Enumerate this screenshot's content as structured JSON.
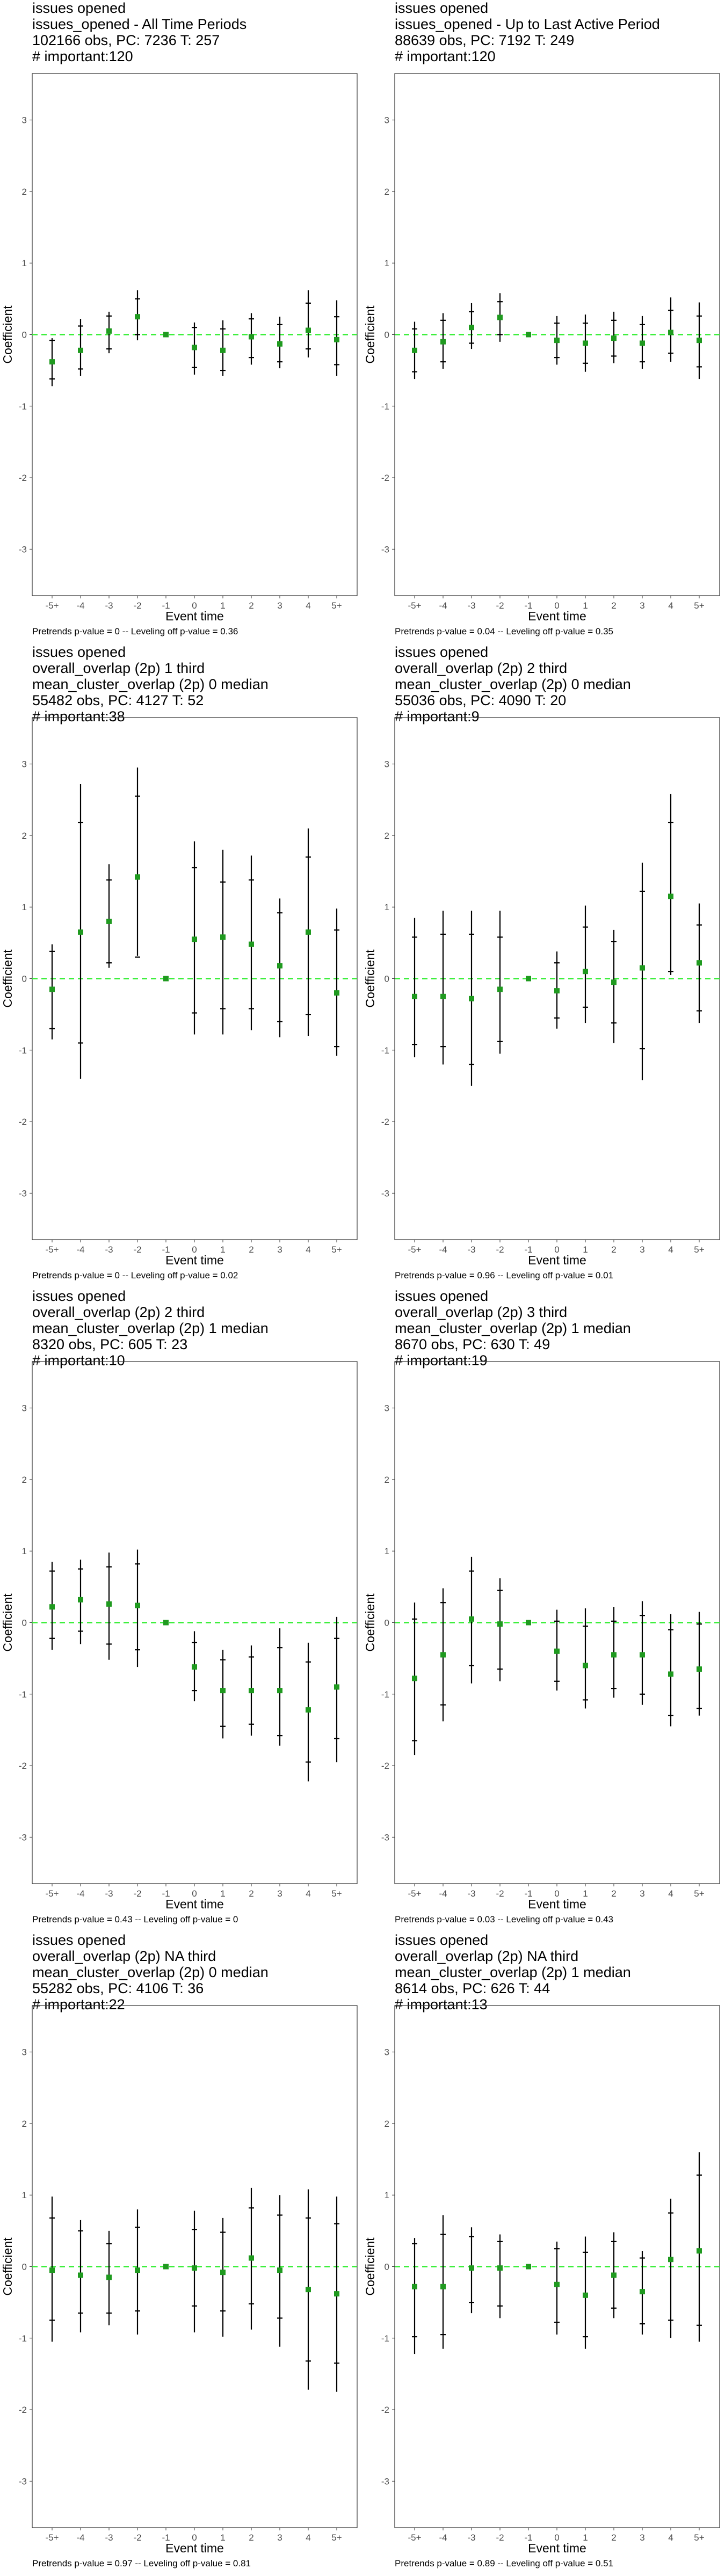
{
  "colors": {
    "point": "#1f9a1f",
    "zero_line": "#33ee33",
    "bar": "#000000",
    "frame": "#333333"
  },
  "chart_data": [
    {
      "type": "scatter",
      "title_lines": [
        "issues opened",
        "issues_opened - All Time Periods",
        "102166 obs, PC: 7236 T: 257",
        "# important:120"
      ],
      "footer": "Pretrends p-value = 0 -- Leveling off p-value = 0.36",
      "xlabel": "Event time",
      "ylabel": "Coefficient",
      "categories": [
        "-5+",
        "-4",
        "-3",
        "-2",
        "-1",
        "0",
        "1",
        "2",
        "3",
        "4",
        "5+"
      ],
      "yticks": [
        -3,
        -2,
        -1,
        0,
        1,
        2,
        3
      ],
      "ylim": [
        -3.65,
        3.65
      ],
      "estimates": [
        -0.38,
        -0.22,
        0.05,
        0.25,
        0.0,
        -0.18,
        -0.22,
        -0.03,
        -0.13,
        0.06,
        -0.07
      ],
      "ci95": [
        [
          -0.72,
          -0.05
        ],
        [
          -0.58,
          0.22
        ],
        [
          -0.26,
          0.32
        ],
        [
          -0.08,
          0.62
        ],
        [
          0,
          0
        ],
        [
          -0.56,
          0.17
        ],
        [
          -0.58,
          0.2
        ],
        [
          -0.42,
          0.3
        ],
        [
          -0.47,
          0.25
        ],
        [
          -0.32,
          0.62
        ],
        [
          -0.58,
          0.48
        ]
      ],
      "ci90": [
        [
          -0.62,
          -0.08
        ],
        [
          -0.48,
          0.12
        ],
        [
          -0.2,
          0.26
        ],
        [
          0.0,
          0.5
        ],
        [
          0,
          0
        ],
        [
          -0.46,
          0.1
        ],
        [
          -0.5,
          0.08
        ],
        [
          -0.32,
          0.22
        ],
        [
          -0.38,
          0.14
        ],
        [
          -0.2,
          0.44
        ],
        [
          -0.42,
          0.25
        ]
      ]
    },
    {
      "type": "scatter",
      "title_lines": [
        "issues opened",
        "issues_opened - Up to Last Active Period",
        "88639 obs, PC: 7192 T: 249",
        "# important:120"
      ],
      "footer": "Pretrends p-value = 0.04 -- Leveling off p-value = 0.35",
      "xlabel": "Event time",
      "ylabel": "Coefficient",
      "categories": [
        "-5+",
        "-4",
        "-3",
        "-2",
        "-1",
        "0",
        "1",
        "2",
        "3",
        "4",
        "5+"
      ],
      "yticks": [
        -3,
        -2,
        -1,
        0,
        1,
        2,
        3
      ],
      "ylim": [
        -3.65,
        3.65
      ],
      "estimates": [
        -0.22,
        -0.1,
        0.1,
        0.24,
        0.0,
        -0.08,
        -0.12,
        -0.05,
        -0.12,
        0.03,
        -0.08
      ],
      "ci95": [
        [
          -0.62,
          0.18
        ],
        [
          -0.48,
          0.3
        ],
        [
          -0.2,
          0.44
        ],
        [
          -0.1,
          0.58
        ],
        [
          0,
          0
        ],
        [
          -0.42,
          0.26
        ],
        [
          -0.52,
          0.28
        ],
        [
          -0.4,
          0.32
        ],
        [
          -0.48,
          0.26
        ],
        [
          -0.38,
          0.52
        ],
        [
          -0.62,
          0.45
        ]
      ],
      "ci90": [
        [
          -0.52,
          0.08
        ],
        [
          -0.38,
          0.2
        ],
        [
          -0.12,
          0.32
        ],
        [
          0.0,
          0.46
        ],
        [
          0,
          0
        ],
        [
          -0.32,
          0.16
        ],
        [
          -0.4,
          0.16
        ],
        [
          -0.3,
          0.2
        ],
        [
          -0.38,
          0.14
        ],
        [
          -0.26,
          0.34
        ],
        [
          -0.45,
          0.26
        ]
      ]
    },
    {
      "type": "scatter",
      "title_lines": [
        "issues opened",
        "overall_overlap (2p) 1 third",
        "mean_cluster_overlap (2p) 0 median",
        "55482 obs, PC: 4127 T: 52",
        "# important:38"
      ],
      "footer": "Pretrends p-value = 0 -- Leveling off p-value = 0.02",
      "xlabel": "Event time",
      "ylabel": "Coefficient",
      "categories": [
        "-5+",
        "-4",
        "-3",
        "-2",
        "-1",
        "0",
        "1",
        "2",
        "3",
        "4",
        "5+"
      ],
      "yticks": [
        -3,
        -2,
        -1,
        0,
        1,
        2,
        3
      ],
      "ylim": [
        -3.65,
        3.65
      ],
      "estimates": [
        -0.15,
        0.65,
        0.8,
        1.42,
        0.0,
        0.55,
        0.58,
        0.48,
        0.18,
        0.65,
        -0.2
      ],
      "ci95": [
        [
          -0.85,
          0.48
        ],
        [
          -1.4,
          2.72
        ],
        [
          0.15,
          1.6
        ],
        [
          0.32,
          2.95
        ],
        [
          0,
          0
        ],
        [
          -0.78,
          1.92
        ],
        [
          -0.78,
          1.8
        ],
        [
          -0.72,
          1.72
        ],
        [
          -0.82,
          1.12
        ],
        [
          -0.8,
          2.1
        ],
        [
          -1.08,
          0.98
        ]
      ],
      "ci90": [
        [
          -0.7,
          0.38
        ],
        [
          -0.9,
          2.18
        ],
        [
          0.22,
          1.38
        ],
        [
          0.3,
          2.55
        ],
        [
          0,
          0
        ],
        [
          -0.48,
          1.55
        ],
        [
          -0.42,
          1.35
        ],
        [
          -0.42,
          1.38
        ],
        [
          -0.6,
          0.92
        ],
        [
          -0.5,
          1.7
        ],
        [
          -0.95,
          0.68
        ]
      ]
    },
    {
      "type": "scatter",
      "title_lines": [
        "issues opened",
        "overall_overlap (2p) 2 third",
        "mean_cluster_overlap (2p) 0 median",
        "55036 obs, PC: 4090 T: 20",
        "# important:9"
      ],
      "footer": "Pretrends p-value = 0.96 -- Leveling off p-value = 0.01",
      "xlabel": "Event time",
      "ylabel": "Coefficient",
      "categories": [
        "-5+",
        "-4",
        "-3",
        "-2",
        "-1",
        "0",
        "1",
        "2",
        "3",
        "4",
        "5+"
      ],
      "yticks": [
        -3,
        -2,
        -1,
        0,
        1,
        2,
        3
      ],
      "ylim": [
        -3.65,
        3.65
      ],
      "estimates": [
        -0.25,
        -0.25,
        -0.28,
        -0.15,
        0.0,
        -0.17,
        0.1,
        -0.05,
        0.15,
        1.15,
        0.22
      ],
      "ci95": [
        [
          -1.1,
          0.85
        ],
        [
          -1.2,
          0.95
        ],
        [
          -1.5,
          0.95
        ],
        [
          -1.05,
          0.95
        ],
        [
          0,
          0
        ],
        [
          -0.7,
          0.38
        ],
        [
          -0.62,
          1.02
        ],
        [
          -0.9,
          0.68
        ],
        [
          -1.42,
          1.62
        ],
        [
          0.05,
          2.58
        ],
        [
          -0.62,
          1.05
        ]
      ],
      "ci90": [
        [
          -0.92,
          0.58
        ],
        [
          -0.95,
          0.62
        ],
        [
          -1.2,
          0.62
        ],
        [
          -0.88,
          0.58
        ],
        [
          0,
          0
        ],
        [
          -0.55,
          0.22
        ],
        [
          -0.4,
          0.72
        ],
        [
          -0.62,
          0.52
        ],
        [
          -0.98,
          1.22
        ],
        [
          0.1,
          2.18
        ],
        [
          -0.45,
          0.75
        ]
      ]
    },
    {
      "type": "scatter",
      "title_lines": [
        "issues opened",
        "overall_overlap (2p) 2 third",
        "mean_cluster_overlap (2p) 1 median",
        "8320 obs, PC: 605 T: 23",
        "# important:10"
      ],
      "footer": "Pretrends p-value = 0.43 -- Leveling off p-value = 0",
      "xlabel": "Event time",
      "ylabel": "Coefficient",
      "categories": [
        "-5+",
        "-4",
        "-3",
        "-2",
        "-1",
        "0",
        "1",
        "2",
        "3",
        "4",
        "5+"
      ],
      "yticks": [
        -3,
        -2,
        -1,
        0,
        1,
        2,
        3
      ],
      "ylim": [
        -3.65,
        3.65
      ],
      "estimates": [
        0.22,
        0.32,
        0.26,
        0.24,
        0.0,
        -0.62,
        -0.95,
        -0.95,
        -0.95,
        -1.22,
        -0.9
      ],
      "ci95": [
        [
          -0.38,
          0.85
        ],
        [
          -0.3,
          0.88
        ],
        [
          -0.52,
          0.98
        ],
        [
          -0.62,
          1.02
        ],
        [
          0,
          0
        ],
        [
          -1.1,
          -0.12
        ],
        [
          -1.62,
          -0.38
        ],
        [
          -1.58,
          -0.32
        ],
        [
          -1.72,
          -0.08
        ],
        [
          -2.22,
          -0.28
        ],
        [
          -1.95,
          0.08
        ]
      ],
      "ci90": [
        [
          -0.22,
          0.72
        ],
        [
          -0.12,
          0.75
        ],
        [
          -0.3,
          0.78
        ],
        [
          -0.38,
          0.82
        ],
        [
          0,
          0
        ],
        [
          -0.95,
          -0.28
        ],
        [
          -1.45,
          -0.52
        ],
        [
          -1.42,
          -0.48
        ],
        [
          -1.58,
          -0.35
        ],
        [
          -1.95,
          -0.55
        ],
        [
          -1.62,
          -0.22
        ]
      ]
    },
    {
      "type": "scatter",
      "title_lines": [
        "issues opened",
        "overall_overlap (2p) 3 third",
        "mean_cluster_overlap (2p) 1 median",
        "8670 obs, PC: 630 T: 49",
        "# important:19"
      ],
      "footer": "Pretrends p-value = 0.03 -- Leveling off p-value = 0.43",
      "xlabel": "Event time",
      "ylabel": "Coefficient",
      "categories": [
        "-5+",
        "-4",
        "-3",
        "-2",
        "-1",
        "0",
        "1",
        "2",
        "3",
        "4",
        "5+"
      ],
      "yticks": [
        -3,
        -2,
        -1,
        0,
        1,
        2,
        3
      ],
      "ylim": [
        -3.65,
        3.65
      ],
      "estimates": [
        -0.78,
        -0.45,
        0.05,
        -0.02,
        0.0,
        -0.4,
        -0.6,
        -0.45,
        -0.45,
        -0.72,
        -0.65
      ],
      "ci95": [
        [
          -1.85,
          0.28
        ],
        [
          -1.38,
          0.48
        ],
        [
          -0.85,
          0.92
        ],
        [
          -0.82,
          0.62
        ],
        [
          0,
          0
        ],
        [
          -0.95,
          0.18
        ],
        [
          -1.2,
          0.2
        ],
        [
          -1.05,
          0.22
        ],
        [
          -1.15,
          0.3
        ],
        [
          -1.45,
          0.12
        ],
        [
          -1.3,
          0.15
        ]
      ],
      "ci90": [
        [
          -1.65,
          0.05
        ],
        [
          -1.15,
          0.28
        ],
        [
          -0.6,
          0.72
        ],
        [
          -0.65,
          0.45
        ],
        [
          0,
          0
        ],
        [
          -0.82,
          0.02
        ],
        [
          -1.08,
          -0.05
        ],
        [
          -0.92,
          0.02
        ],
        [
          -1.0,
          0.1
        ],
        [
          -1.3,
          -0.1
        ],
        [
          -1.2,
          -0.02
        ]
      ]
    },
    {
      "type": "scatter",
      "title_lines": [
        "issues opened",
        "overall_overlap (2p) NA third",
        "mean_cluster_overlap (2p) 0 median",
        "55282 obs, PC: 4106 T: 36",
        "# important:22"
      ],
      "footer": "Pretrends p-value = 0.97 -- Leveling off p-value = 0.81",
      "xlabel": "Event time",
      "ylabel": "Coefficient",
      "categories": [
        "-5+",
        "-4",
        "-3",
        "-2",
        "-1",
        "0",
        "1",
        "2",
        "3",
        "4",
        "5+"
      ],
      "yticks": [
        -3,
        -2,
        -1,
        0,
        1,
        2,
        3
      ],
      "ylim": [
        -3.65,
        3.65
      ],
      "estimates": [
        -0.05,
        -0.12,
        -0.15,
        -0.05,
        0.0,
        -0.02,
        -0.08,
        0.12,
        -0.05,
        -0.32,
        -0.38
      ],
      "ci95": [
        [
          -1.05,
          0.98
        ],
        [
          -0.92,
          0.65
        ],
        [
          -0.82,
          0.5
        ],
        [
          -0.95,
          0.8
        ],
        [
          0,
          0
        ],
        [
          -0.92,
          0.78
        ],
        [
          -0.98,
          0.68
        ],
        [
          -0.88,
          1.1
        ],
        [
          -1.12,
          1.0
        ],
        [
          -1.72,
          1.08
        ],
        [
          -1.75,
          0.98
        ]
      ],
      "ci90": [
        [
          -0.75,
          0.68
        ],
        [
          -0.65,
          0.5
        ],
        [
          -0.65,
          0.32
        ],
        [
          -0.62,
          0.55
        ],
        [
          0,
          0
        ],
        [
          -0.55,
          0.52
        ],
        [
          -0.62,
          0.48
        ],
        [
          -0.52,
          0.82
        ],
        [
          -0.72,
          0.72
        ],
        [
          -1.32,
          0.68
        ],
        [
          -1.35,
          0.6
        ]
      ]
    },
    {
      "type": "scatter",
      "title_lines": [
        "issues opened",
        "overall_overlap (2p) NA third",
        "mean_cluster_overlap (2p) 1 median",
        "8614 obs, PC: 626 T: 44",
        "# important:13"
      ],
      "footer": "Pretrends p-value = 0.89 -- Leveling off p-value = 0.51",
      "xlabel": "Event time",
      "ylabel": "Coefficient",
      "categories": [
        "-5+",
        "-4",
        "-3",
        "-2",
        "-1",
        "0",
        "1",
        "2",
        "3",
        "4",
        "5+"
      ],
      "yticks": [
        -3,
        -2,
        -1,
        0,
        1,
        2,
        3
      ],
      "ylim": [
        -3.65,
        3.65
      ],
      "estimates": [
        -0.28,
        -0.28,
        -0.02,
        -0.02,
        0.0,
        -0.25,
        -0.4,
        -0.12,
        -0.35,
        0.1,
        0.22
      ],
      "ci95": [
        [
          -1.22,
          0.4
        ],
        [
          -1.15,
          0.72
        ],
        [
          -0.65,
          0.55
        ],
        [
          -0.72,
          0.45
        ],
        [
          0,
          0
        ],
        [
          -0.95,
          0.35
        ],
        [
          -1.15,
          0.42
        ],
        [
          -0.72,
          0.48
        ],
        [
          -0.95,
          0.22
        ],
        [
          -1.0,
          0.95
        ],
        [
          -1.05,
          1.6
        ]
      ],
      "ci90": [
        [
          -0.98,
          0.32
        ],
        [
          -0.95,
          0.45
        ],
        [
          -0.5,
          0.42
        ],
        [
          -0.55,
          0.35
        ],
        [
          0,
          0
        ],
        [
          -0.78,
          0.25
        ],
        [
          -0.98,
          0.2
        ],
        [
          -0.58,
          0.35
        ],
        [
          -0.8,
          0.12
        ],
        [
          -0.75,
          0.75
        ],
        [
          -0.82,
          1.28
        ]
      ]
    }
  ]
}
